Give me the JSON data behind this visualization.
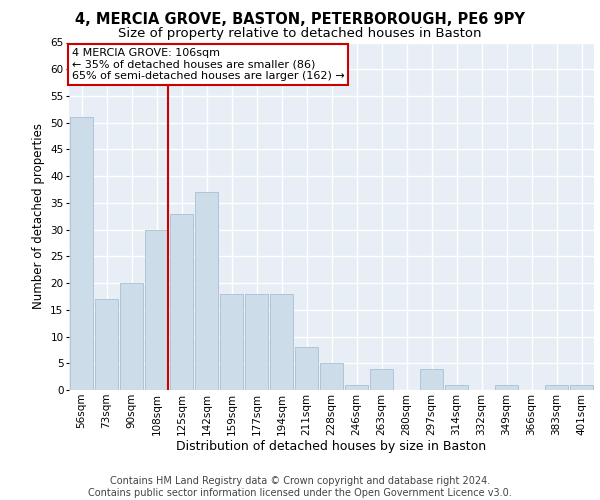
{
  "title1": "4, MERCIA GROVE, BASTON, PETERBOROUGH, PE6 9PY",
  "title2": "Size of property relative to detached houses in Baston",
  "xlabel": "Distribution of detached houses by size in Baston",
  "ylabel": "Number of detached properties",
  "categories": [
    "56sqm",
    "73sqm",
    "90sqm",
    "108sqm",
    "125sqm",
    "142sqm",
    "159sqm",
    "177sqm",
    "194sqm",
    "211sqm",
    "228sqm",
    "246sqm",
    "263sqm",
    "280sqm",
    "297sqm",
    "314sqm",
    "332sqm",
    "349sqm",
    "366sqm",
    "383sqm",
    "401sqm"
  ],
  "values": [
    51,
    17,
    20,
    30,
    33,
    37,
    18,
    18,
    18,
    8,
    5,
    1,
    4,
    0,
    4,
    1,
    0,
    1,
    0,
    1,
    1
  ],
  "bar_color": "#ccdde9",
  "bar_edge_color": "#aabfcf",
  "background_color": "#e8eef5",
  "grid_color": "#ffffff",
  "annotation_text": "4 MERCIA GROVE: 106sqm\n← 35% of detached houses are smaller (86)\n65% of semi-detached houses are larger (162) →",
  "annotation_box_color": "#ffffff",
  "annotation_box_edge_color": "#cc0000",
  "red_line_index": 3,
  "red_line_color": "#cc0000",
  "ylim": [
    0,
    65
  ],
  "footer_text": "Contains HM Land Registry data © Crown copyright and database right 2024.\nContains public sector information licensed under the Open Government Licence v3.0.",
  "title1_fontsize": 10.5,
  "title2_fontsize": 9.5,
  "xlabel_fontsize": 9,
  "ylabel_fontsize": 8.5,
  "tick_fontsize": 7.5,
  "footer_fontsize": 7
}
